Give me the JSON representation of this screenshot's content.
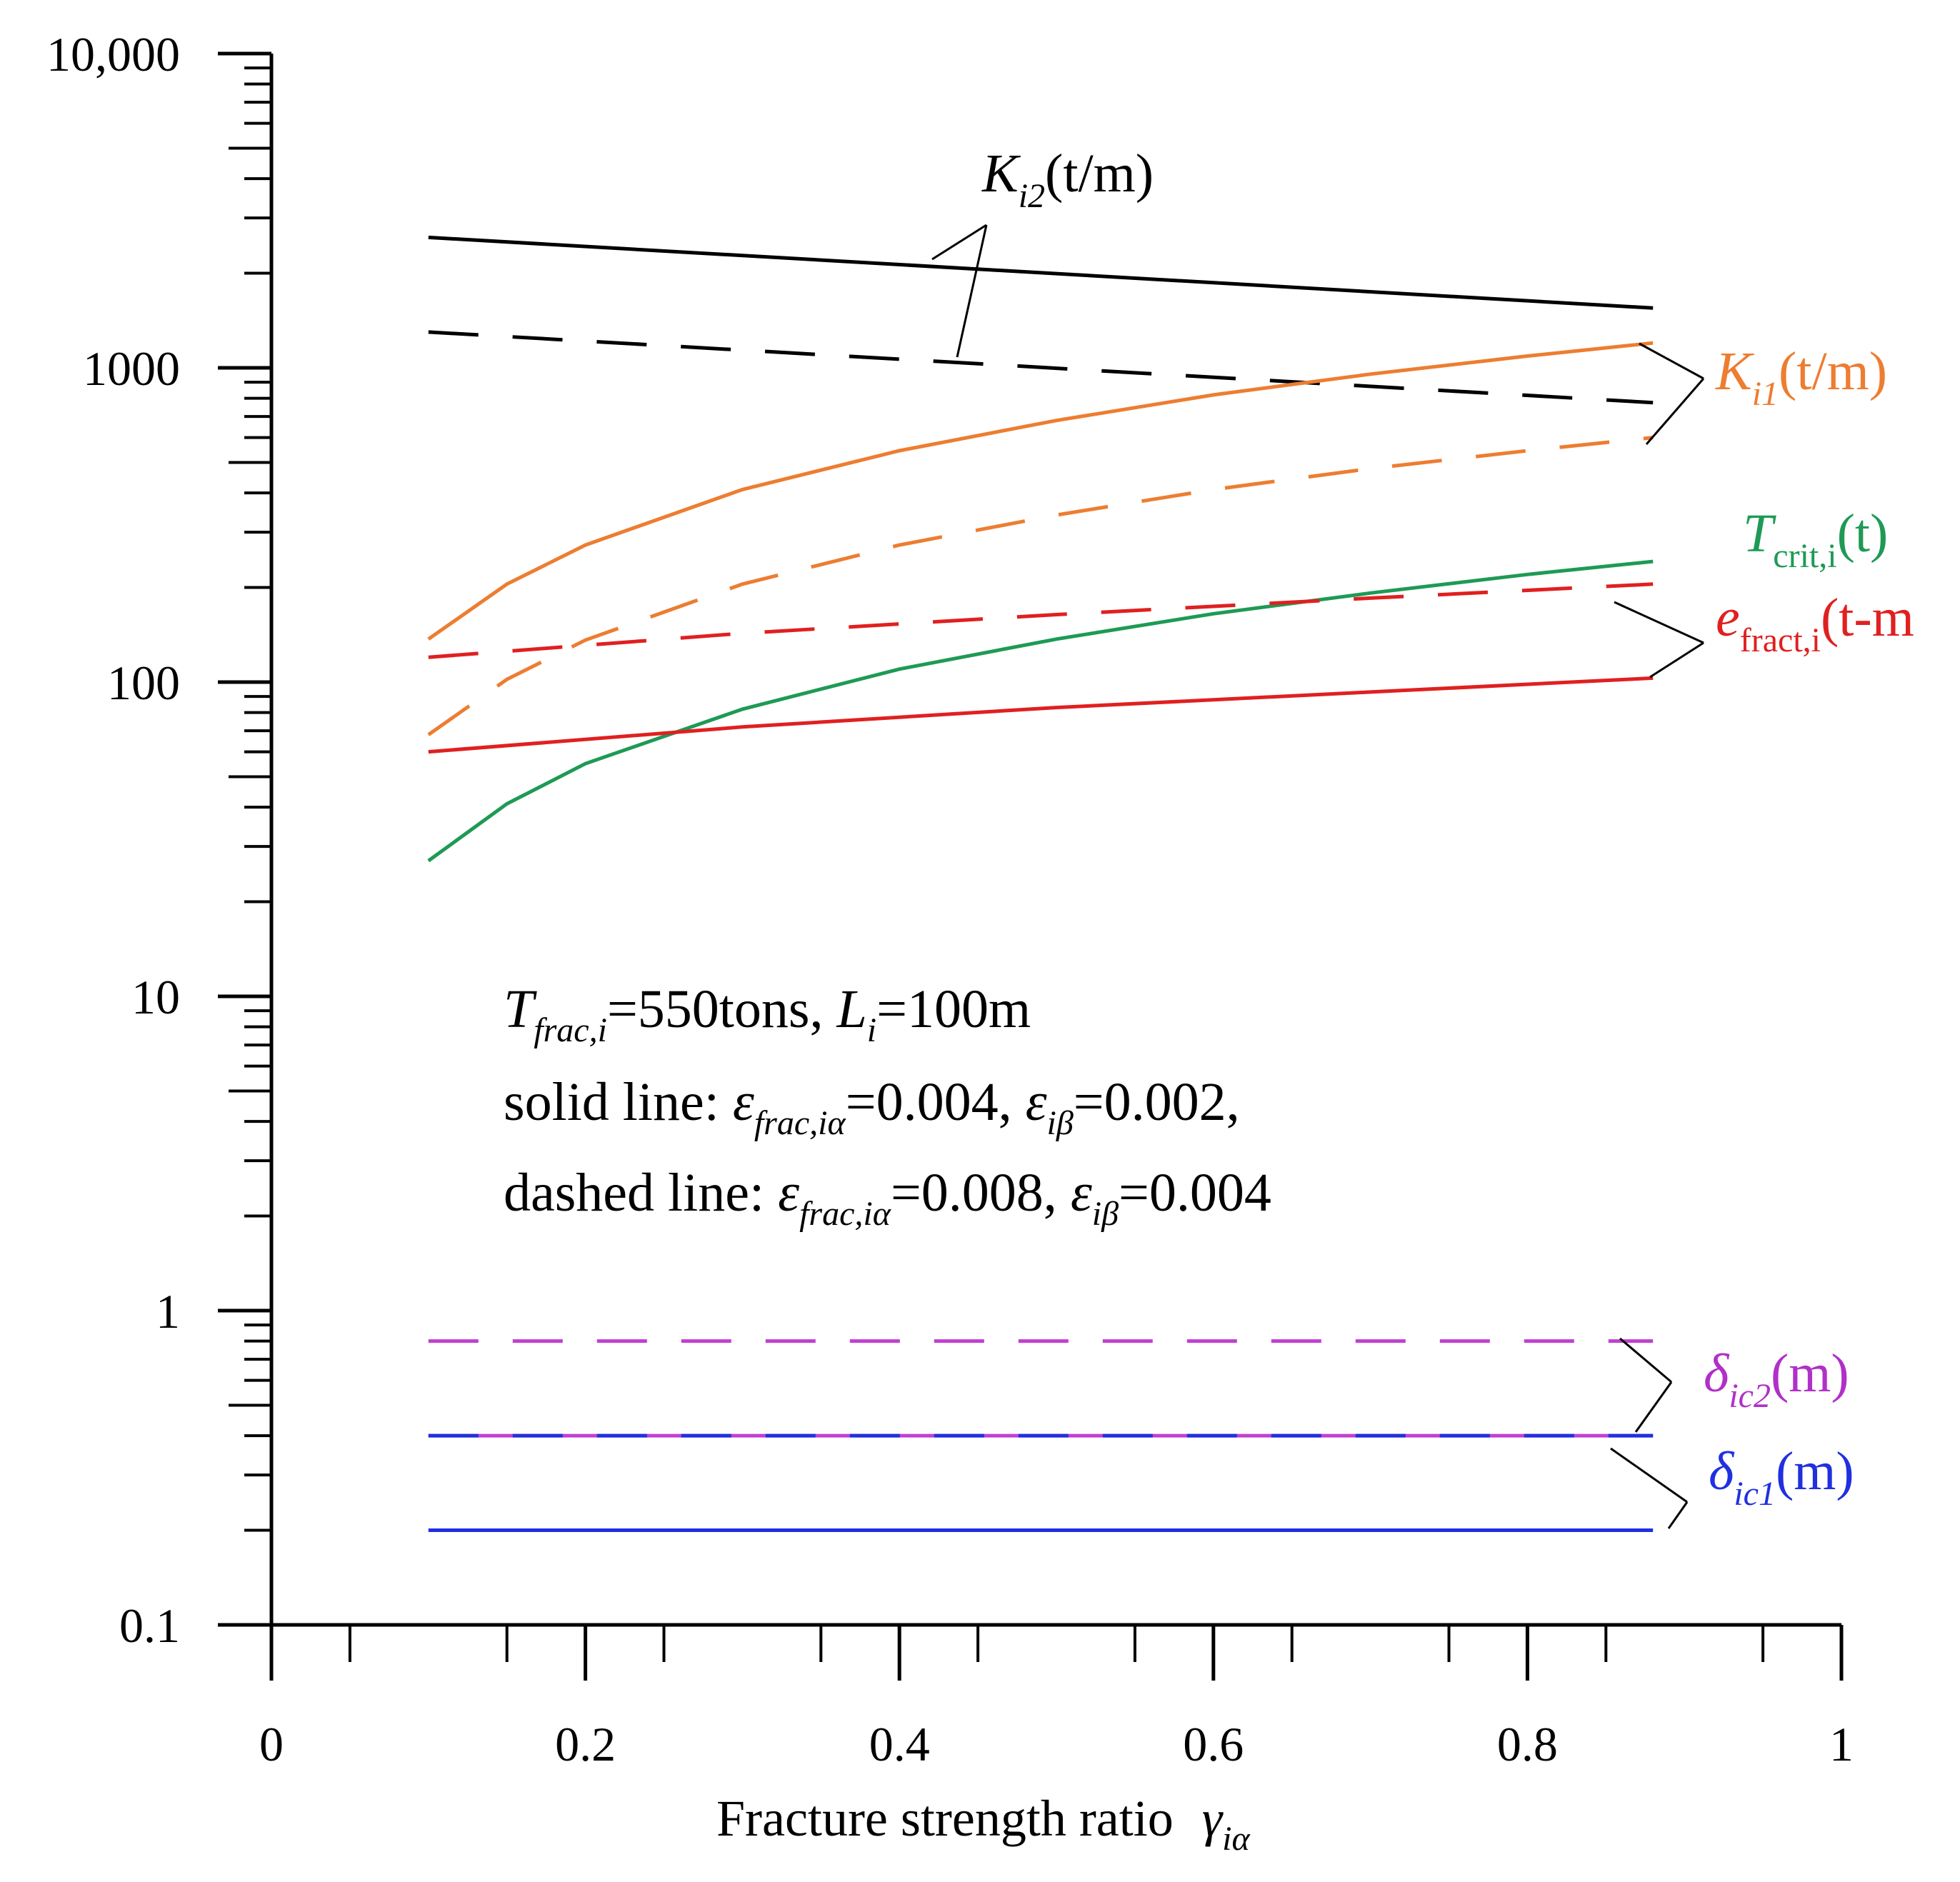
{
  "chart_data": {
    "type": "line",
    "title": "",
    "xlabel": "Fracture strength ratio",
    "xlabel_symbol": "γ",
    "xlabel_symbol_sub": "iα",
    "ylabel": "",
    "xlim": [
      0,
      1
    ],
    "ylim": [
      0.1,
      10000
    ],
    "yscale": "log",
    "grid": false,
    "x_ticks": [
      0,
      0.2,
      0.4,
      0.6,
      0.8,
      1
    ],
    "x_tick_labels": [
      "0",
      "0.2",
      "0.4",
      "0.6",
      "0.8",
      "1"
    ],
    "y_ticks": [
      0.1,
      1,
      10,
      100,
      1000,
      10000
    ],
    "y_tick_labels": [
      "0.1",
      "1",
      "10",
      "100",
      "1000",
      "10,000"
    ],
    "colors": {
      "K2": "#000000",
      "K1": "#ED7D31",
      "Tcrit": "#1E9A55",
      "efract": "#E02020",
      "delta2": "#C040D0",
      "delta1": "#2030E0"
    },
    "series": [
      {
        "name": "K_i2 solid",
        "group": "K2",
        "style": "solid",
        "x": [
          0.1,
          0.88
        ],
        "values": [
          2600,
          1550
        ]
      },
      {
        "name": "K_i2 dashed",
        "group": "K2",
        "style": "dashed",
        "x": [
          0.1,
          0.88
        ],
        "values": [
          1300,
          775
        ]
      },
      {
        "name": "K_i1 solid",
        "group": "K1",
        "style": "solid",
        "x": [
          0.1,
          0.15,
          0.2,
          0.3,
          0.4,
          0.5,
          0.6,
          0.7,
          0.8,
          0.88
        ],
        "values": [
          137,
          205,
          273,
          410,
          545,
          680,
          820,
          955,
          1090,
          1200
        ]
      },
      {
        "name": "K_i1 dashed",
        "group": "K1",
        "style": "dashed",
        "x": [
          0.1,
          0.15,
          0.2,
          0.3,
          0.4,
          0.5,
          0.6,
          0.7,
          0.8,
          0.88
        ],
        "values": [
          68,
          102,
          136,
          205,
          273,
          340,
          410,
          478,
          545,
          600
        ]
      },
      {
        "name": "T_crit solid",
        "group": "Tcrit",
        "style": "solid",
        "x": [
          0.1,
          0.15,
          0.2,
          0.3,
          0.4,
          0.5,
          0.6,
          0.7,
          0.8,
          0.88
        ],
        "values": [
          27,
          41,
          55,
          82,
          110,
          137,
          165,
          192,
          220,
          242
        ]
      },
      {
        "name": "e_fract solid",
        "group": "efract",
        "style": "solid",
        "x": [
          0.1,
          0.3,
          0.5,
          0.7,
          0.88
        ],
        "values": [
          60,
          72,
          83,
          93,
          103
        ]
      },
      {
        "name": "e_fract dashed",
        "group": "efract",
        "style": "dashed",
        "x": [
          0.1,
          0.3,
          0.5,
          0.7,
          0.88
        ],
        "values": [
          120,
          143,
          164,
          185,
          205
        ]
      },
      {
        "name": "delta_ic2 dashed",
        "group": "delta2",
        "style": "dashed",
        "x": [
          0.1,
          0.88
        ],
        "values": [
          0.8,
          0.8
        ]
      },
      {
        "name": "delta_ic2 solid",
        "group": "delta2",
        "style": "solid",
        "x": [
          0.1,
          0.88
        ],
        "values": [
          0.4,
          0.4
        ]
      },
      {
        "name": "delta_ic1 dashed",
        "group": "delta1",
        "style": "dashed",
        "x": [
          0.1,
          0.88
        ],
        "values": [
          0.4,
          0.4
        ]
      },
      {
        "name": "delta_ic1 solid",
        "group": "delta1",
        "style": "solid",
        "x": [
          0.1,
          0.88
        ],
        "values": [
          0.2,
          0.2
        ]
      }
    ],
    "series_labels": {
      "K2": {
        "main": "K",
        "sub": "i2",
        "unit": "(t/m)"
      },
      "K1": {
        "main": "K",
        "sub": "i1",
        "unit": "(t/m)"
      },
      "Tcrit": {
        "main": "T",
        "sub": "crit,i",
        "unit": "(t)"
      },
      "efract": {
        "main": "e",
        "sub": "fract,i",
        "unit": "(t-m"
      },
      "delta2": {
        "main": "δ",
        "sub": "ic2",
        "unit": "(m)"
      },
      "delta1": {
        "main": "δ",
        "sub": "ic1",
        "unit": "(m)"
      }
    },
    "annotation": {
      "line1": {
        "t": "T",
        "t_sub": "frac,i",
        "rest": "=550tons, ",
        "l": "L",
        "l_sub": "i",
        "rest2": "=100m"
      },
      "line2": {
        "prefix": "solid line: ",
        "e1": "ε",
        "e1_sub": "frac,iα",
        "v1": "=0.004, ",
        "e2": "ε",
        "e2_sub": "iβ",
        "v2": "=0.002,"
      },
      "line3": {
        "prefix": "dashed line: ",
        "e1": "ε",
        "e1_sub": "frac,iα",
        "v1": "=0.008, ",
        "e2": "ε",
        "e2_sub": "iβ",
        "v2": "=0.004"
      }
    }
  }
}
